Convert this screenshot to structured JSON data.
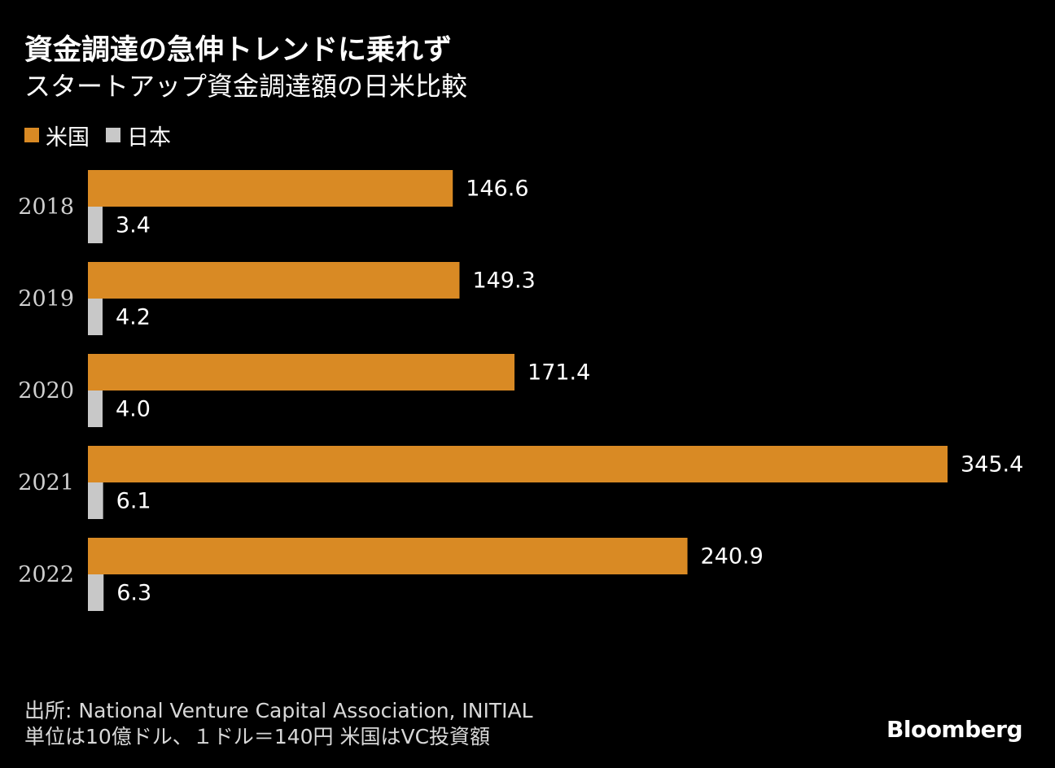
{
  "title": "資金調達の急伸トレンドに乗れず",
  "subtitle": "スタートアップ資金調達額の日米比較",
  "legend": [
    {
      "label": "米国",
      "color": "#d98a24"
    },
    {
      "label": "日本",
      "color": "#c8c8c8"
    }
  ],
  "chart_data": {
    "type": "bar",
    "orientation": "horizontal",
    "title": "資金調達の急伸トレンドに乗れず",
    "subtitle": "スタートアップ資金調達額の日米比較",
    "categories": [
      "2018",
      "2019",
      "2020",
      "2021",
      "2022"
    ],
    "series": [
      {
        "name": "米国",
        "color": "#d98a24",
        "values": [
          146.6,
          149.3,
          171.4,
          345.4,
          240.9
        ],
        "labels": [
          "146.6",
          "149.3",
          "171.4",
          "345.4",
          "240.9"
        ]
      },
      {
        "name": "日本",
        "color": "#c8c8c8",
        "values": [
          3.4,
          4.2,
          4.0,
          6.1,
          6.3
        ],
        "labels": [
          "3.4",
          "4.2",
          "4.0",
          "6.1",
          "6.3"
        ]
      }
    ],
    "xlabel": "",
    "ylabel": "",
    "xlim": [
      0,
      345.4
    ],
    "grid": false,
    "legend_position": "top-left"
  },
  "footer": {
    "source": "出所: National Venture Capital Association, INITIAL",
    "note": "単位は10億ドル、１ドル＝140円 米国はVC投資額"
  },
  "brand": "Bloomberg"
}
